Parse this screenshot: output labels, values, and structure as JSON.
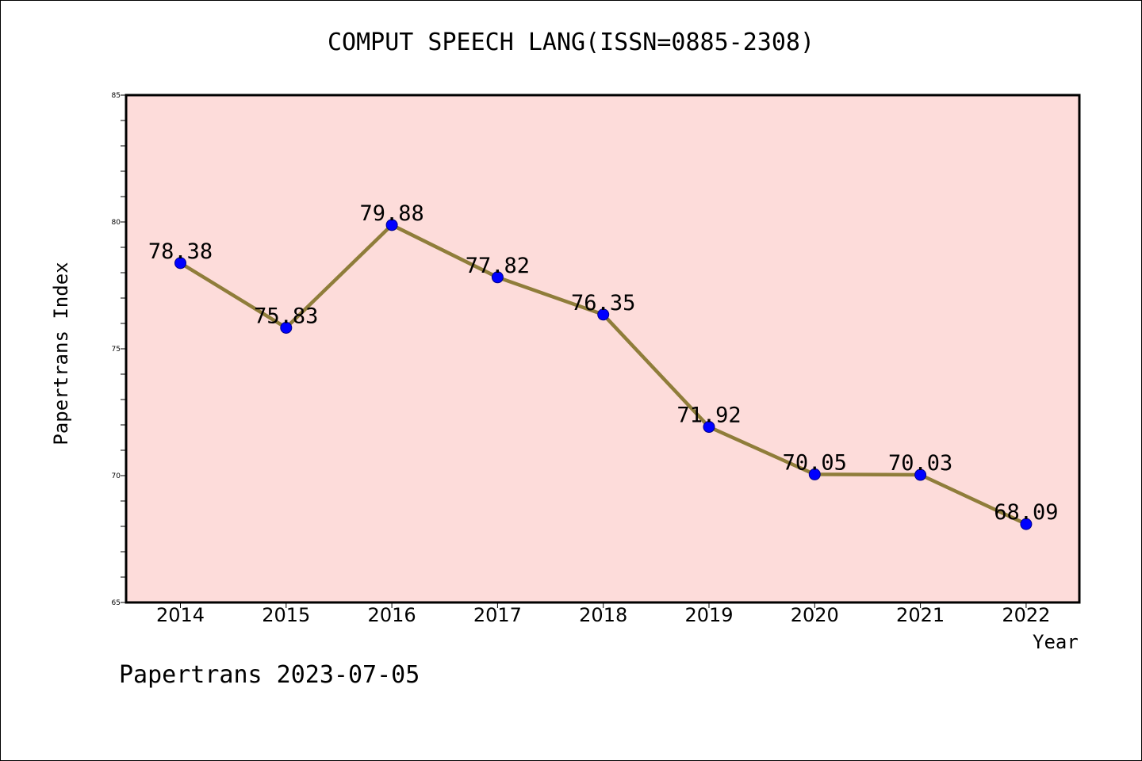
{
  "chart_data": {
    "type": "line",
    "title": "COMPUT SPEECH LANG(ISSN=0885-2308)",
    "xlabel": "Year",
    "ylabel": "Papertrans Index",
    "categories": [
      "2014",
      "2015",
      "2016",
      "2017",
      "2018",
      "2019",
      "2020",
      "2021",
      "2022"
    ],
    "values": [
      78.38,
      75.83,
      79.88,
      77.82,
      76.35,
      71.92,
      70.05,
      70.03,
      68.09
    ],
    "data_labels": [
      "78.38",
      "75.83",
      "79.88",
      "77.82",
      "76.35",
      "71.92",
      "70.05",
      "70.03",
      "68.09"
    ],
    "ylim": [
      65,
      85
    ],
    "yticks": [
      65,
      70,
      75,
      80,
      85
    ],
    "grid": false,
    "legend": "none",
    "colors": {
      "plot_background": "#fddcda",
      "line": "#8f7d3a",
      "marker": "#0000ff",
      "axes": "#000000"
    }
  },
  "footer": "Papertrans 2023-07-05"
}
